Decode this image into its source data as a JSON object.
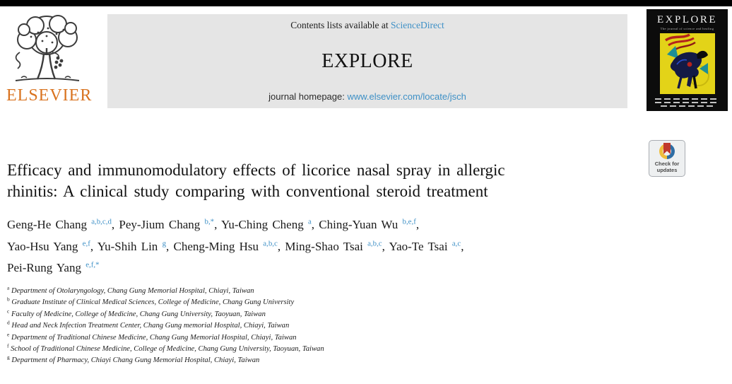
{
  "header": {
    "contents_prefix": "Contents lists available at ",
    "sciencedirect": "ScienceDirect",
    "journal_name": "EXPLORE",
    "homepage_prefix": "journal homepage: ",
    "homepage_url": "www.elsevier.com/locate/jsch",
    "elsevier_wordmark": "ELSEVIER"
  },
  "cover": {
    "title": "EXPLORE",
    "subtitle": "The journal of science and healing"
  },
  "badge": {
    "line1": "Check for",
    "line2": "updates"
  },
  "article": {
    "title_lines": [
      "Efficacy and immunomodulatory effects of licorice nasal spray in allergic",
      "rhinitis: A clinical study comparing with conventional steroid treatment"
    ],
    "author_lines": [
      {
        "authors": [
          {
            "name": "Geng-He Chang",
            "sup": "a,b,c,d"
          },
          {
            "name": "Pey-Jium Chang",
            "sup": "b,*"
          },
          {
            "name": "Yu-Ching Cheng",
            "sup": "a"
          },
          {
            "name": "Ching-Yuan Wu",
            "sup": "b,e,f"
          }
        ],
        "suffix": ","
      },
      {
        "authors": [
          {
            "name": "Yao-Hsu Yang",
            "sup": "e,f"
          },
          {
            "name": "Yu-Shih Lin",
            "sup": "g"
          },
          {
            "name": "Cheng-Ming Hsu",
            "sup": "a,b,c"
          },
          {
            "name": "Ming-Shao Tsai",
            "sup": "a,b,c"
          },
          {
            "name": "Yao-Te Tsai",
            "sup": "a,c"
          }
        ],
        "suffix": ","
      },
      {
        "authors": [
          {
            "name": "Pei-Rung Yang",
            "sup": "e,f,*"
          }
        ],
        "suffix": ""
      }
    ],
    "affiliations": [
      {
        "sup": "a",
        "text": "Department of Otolaryngology, Chang Gung Memorial Hospital, Chiayi, Taiwan"
      },
      {
        "sup": "b",
        "text": "Graduate Institute of Clinical Medical Sciences, College of Medicine, Chang Gung University"
      },
      {
        "sup": "c",
        "text": "Faculty of Medicine, College of Medicine, Chang Gung University, Taoyuan, Taiwan"
      },
      {
        "sup": "d",
        "text": "Head and Neck Infection Treatment Center, Chang Gung memorial Hospital, Chiayi, Taiwan"
      },
      {
        "sup": "e",
        "text": "Department of Traditional Chinese Medicine, Chang Gung Memorial Hospital, Chiayi, Taiwan"
      },
      {
        "sup": "f",
        "text": "School of Traditional Chinese Medicine, College of Medicine, Chang Gung University, Taoyuan, Taiwan"
      },
      {
        "sup": "g",
        "text": "Department of Pharmacy, Chiayi Chang Gung Memorial Hospital, Chiayi, Taiwan"
      }
    ]
  },
  "colors": {
    "link_blue": "#3e90c6",
    "elsevier_orange": "#d9731f",
    "banner_gray": "#e5e5e5",
    "badge_red": "#c0392b",
    "badge_yellow": "#eebd3c",
    "badge_blue": "#2e6da4"
  }
}
